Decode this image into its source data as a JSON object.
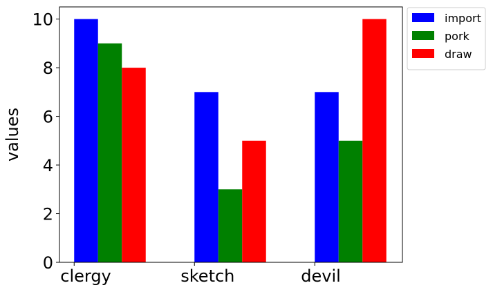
{
  "chart_data": {
    "type": "bar",
    "title": "",
    "xlabel": "",
    "ylabel": "values",
    "categories": [
      "clergy",
      "sketch",
      "devil"
    ],
    "series": [
      {
        "name": "import",
        "values": [
          10,
          7,
          7
        ],
        "color": "#0000ff"
      },
      {
        "name": "pork",
        "values": [
          9,
          3,
          5
        ],
        "color": "#008000"
      },
      {
        "name": "draw",
        "values": [
          8,
          5,
          10
        ],
        "color": "#ff0000"
      }
    ],
    "ylim": [
      0,
      10.5
    ],
    "yticks": [
      0,
      2,
      4,
      6,
      8,
      10
    ],
    "grid": false,
    "legend_position": "outside-top-right"
  }
}
